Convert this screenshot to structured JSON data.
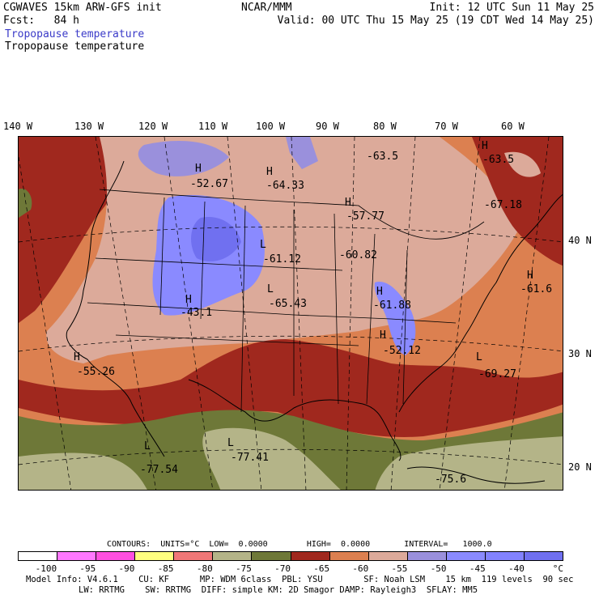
{
  "header": {
    "line1_left": "CGWAVES 15km ARW-GFS init",
    "line2_left": "Fcst:   84 h",
    "center": "NCAR/MMM",
    "line1_right": "Init: 12 UTC Sun 11 May 25",
    "line2_right": "Valid: 00 UTC Thu 15 May 25 (19 CDT Wed 14 May 25)",
    "field_label_colored": "Tropopause temperature",
    "field_label_black": "Tropopause temperature"
  },
  "axes": {
    "longitudes": [
      "140 W",
      "130 W",
      "120 W",
      "110 W",
      "100 W",
      "90 W",
      "80 W",
      "70 W",
      "60 W"
    ],
    "latitudes": [
      "40 N",
      "30 N",
      "20 N"
    ]
  },
  "map": {
    "type": "filled contour map",
    "extremes": [
      {
        "sym": "H",
        "value": "-52.67"
      },
      {
        "sym": "H",
        "value": "-64.33"
      },
      {
        "sym": "H",
        "value": "-63.5"
      },
      {
        "sym": "H",
        "value": "-63.5"
      },
      {
        "sym": "H",
        "value": "-67.18"
      },
      {
        "sym": "H",
        "value": "-57.77"
      },
      {
        "sym": "L",
        "value": "-61.12"
      },
      {
        "sym": "L",
        "value": "-60.82"
      },
      {
        "sym": "H",
        "value": "-61.6"
      },
      {
        "sym": "H",
        "value": "-43.1"
      },
      {
        "sym": "L",
        "value": "-65.43"
      },
      {
        "sym": "H",
        "value": "-61.88"
      },
      {
        "sym": "H",
        "value": "-52.12"
      },
      {
        "sym": "H",
        "value": "-55.26"
      },
      {
        "sym": "L",
        "value": "-69.27"
      },
      {
        "sym": "L",
        "value": "-77.54"
      },
      {
        "sym": "L",
        "value": "-77.41"
      },
      {
        "sym": "L",
        "value": "-75.6"
      }
    ],
    "level_colors": {
      "lt_minus100": "#ffffff",
      "-100_-95": "#ff78ff",
      "-95_-90": "#ff50e0",
      "-90_-85": "#ffff80",
      "-85_-80": "#f07878",
      "-80_-75": "#b4b488",
      "-75_-70": "#6e7838",
      "-70_-65": "#a0281e",
      "-65_-60": "#dc8050",
      "-60_-55": "#dcaa9a",
      "-55_-50": "#9a90dc",
      "-50_-45": "#8a8aff",
      "-45_-40": "#8282ff",
      "gt_minus40": "#7070f0"
    }
  },
  "contour_info": {
    "text": "CONTOURS:  UNITS=°C  LOW=  0.0000        HIGH=  0.0000       INTERVAL=   1000.0"
  },
  "colorbar": {
    "colors": [
      "#ffffff",
      "#ff78ff",
      "#ff50e0",
      "#ffff80",
      "#f07878",
      "#b4b488",
      "#6e7838",
      "#a0281e",
      "#dc8050",
      "#dcaa9a",
      "#9a90dc",
      "#8a8aff",
      "#8282ff",
      "#7070f0"
    ],
    "labels": [
      "-100",
      "-95",
      "-90",
      "-85",
      "-80",
      "-75",
      "-70",
      "-65",
      "-60",
      "-55",
      "-50",
      "-45",
      "-40",
      "°C"
    ]
  },
  "footer": {
    "line1": "Model Info: V4.6.1    CU: KF      MP: WDM 6class  PBL: YSU        SF: Noah LSM    15 km  119 levels  90 sec",
    "line2": "LW: RRTMG    SW: RRTMG  DIFF: simple KM: 2D Smagor DAMP: Rayleigh3  SFLAY: MM5"
  }
}
